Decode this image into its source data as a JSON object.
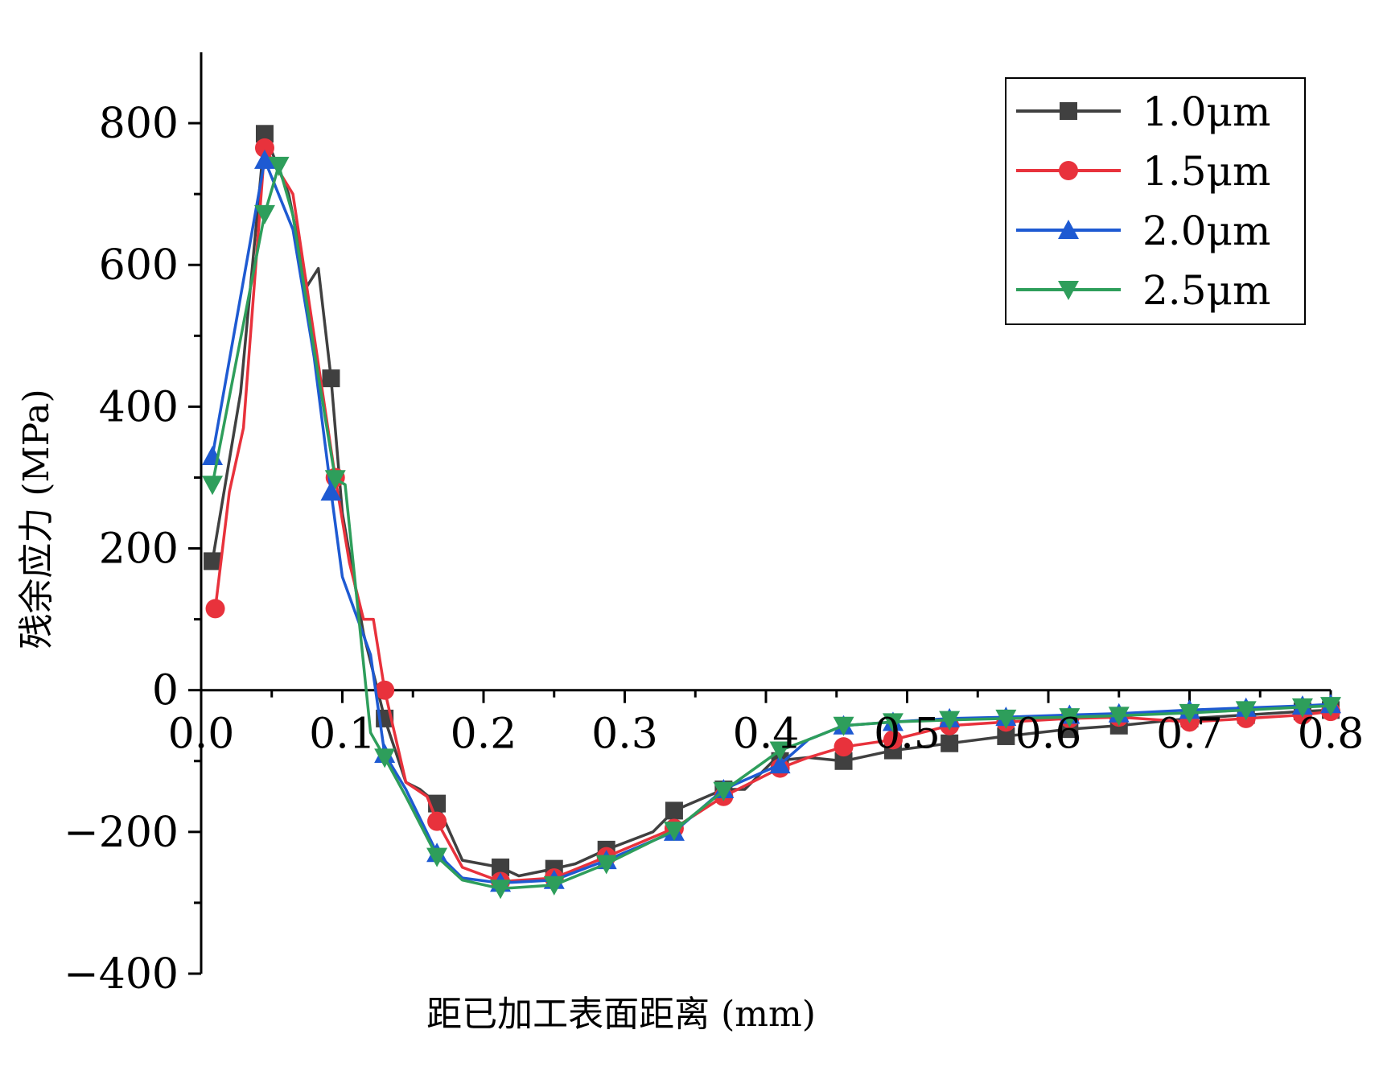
{
  "chart_data": {
    "type": "line",
    "title": "",
    "xlabel": "距已加工表面距离 (mm)",
    "ylabel": "残余应力 (MPa)",
    "xlim": [
      0.0,
      0.8
    ],
    "ylim": [
      -400,
      900
    ],
    "x_ticks": [
      "0.0",
      "0.1",
      "0.2",
      "0.3",
      "0.4",
      "0.5",
      "0.6",
      "0.7",
      "0.8"
    ],
    "y_ticks": [
      "800",
      "600",
      "400",
      "200",
      "0",
      "-200",
      "-400"
    ],
    "legend_position": "top-right",
    "series": [
      {
        "name": "1.0μm",
        "color": "#404040",
        "marker": "square",
        "points": [
          [
            0.008,
            182
          ],
          [
            0.028,
            420
          ],
          [
            0.045,
            785
          ],
          [
            0.062,
            700
          ],
          [
            0.075,
            570
          ],
          [
            0.083,
            595
          ],
          [
            0.092,
            440
          ],
          [
            0.1,
            250
          ],
          [
            0.115,
            80
          ],
          [
            0.13,
            -40
          ],
          [
            0.145,
            -130
          ],
          [
            0.155,
            -140
          ],
          [
            0.167,
            -160
          ],
          [
            0.185,
            -240
          ],
          [
            0.212,
            -250
          ],
          [
            0.225,
            -262
          ],
          [
            0.25,
            -252
          ],
          [
            0.265,
            -245
          ],
          [
            0.287,
            -225
          ],
          [
            0.32,
            -200
          ],
          [
            0.335,
            -170
          ],
          [
            0.37,
            -140
          ],
          [
            0.385,
            -140
          ],
          [
            0.405,
            -100
          ],
          [
            0.43,
            -95
          ],
          [
            0.455,
            -100
          ],
          [
            0.49,
            -85
          ],
          [
            0.53,
            -75
          ],
          [
            0.57,
            -65
          ],
          [
            0.615,
            -55
          ],
          [
            0.65,
            -50
          ],
          [
            0.7,
            -40
          ],
          [
            0.74,
            -35
          ],
          [
            0.78,
            -30
          ],
          [
            0.8,
            -28
          ]
        ],
        "marked": [
          [
            0.008,
            182
          ],
          [
            0.045,
            785
          ],
          [
            0.092,
            440
          ],
          [
            0.13,
            -40
          ],
          [
            0.167,
            -160
          ],
          [
            0.212,
            -250
          ],
          [
            0.25,
            -252
          ],
          [
            0.287,
            -225
          ],
          [
            0.335,
            -170
          ],
          [
            0.37,
            -140
          ],
          [
            0.41,
            -100
          ],
          [
            0.455,
            -100
          ],
          [
            0.49,
            -85
          ],
          [
            0.53,
            -75
          ],
          [
            0.57,
            -65
          ],
          [
            0.615,
            -55
          ],
          [
            0.65,
            -50
          ],
          [
            0.7,
            -40
          ],
          [
            0.74,
            -35
          ],
          [
            0.78,
            -30
          ],
          [
            0.8,
            -28
          ]
        ]
      },
      {
        "name": "1.5μm",
        "color": "#e8323c",
        "marker": "circle",
        "points": [
          [
            0.01,
            115
          ],
          [
            0.02,
            280
          ],
          [
            0.03,
            370
          ],
          [
            0.045,
            765
          ],
          [
            0.065,
            700
          ],
          [
            0.08,
            500
          ],
          [
            0.095,
            300
          ],
          [
            0.105,
            180
          ],
          [
            0.115,
            100
          ],
          [
            0.122,
            100
          ],
          [
            0.13,
            0
          ],
          [
            0.145,
            -130
          ],
          [
            0.16,
            -150
          ],
          [
            0.167,
            -185
          ],
          [
            0.185,
            -250
          ],
          [
            0.212,
            -270
          ],
          [
            0.25,
            -265
          ],
          [
            0.287,
            -235
          ],
          [
            0.335,
            -195
          ],
          [
            0.37,
            -150
          ],
          [
            0.41,
            -110
          ],
          [
            0.43,
            -95
          ],
          [
            0.455,
            -80
          ],
          [
            0.49,
            -70
          ],
          [
            0.53,
            -50
          ],
          [
            0.57,
            -45
          ],
          [
            0.615,
            -40
          ],
          [
            0.65,
            -38
          ],
          [
            0.7,
            -45
          ],
          [
            0.74,
            -40
          ],
          [
            0.78,
            -35
          ],
          [
            0.8,
            -30
          ]
        ],
        "marked": [
          [
            0.01,
            115
          ],
          [
            0.045,
            765
          ],
          [
            0.095,
            300
          ],
          [
            0.13,
            0
          ],
          [
            0.167,
            -185
          ],
          [
            0.212,
            -270
          ],
          [
            0.25,
            -265
          ],
          [
            0.287,
            -235
          ],
          [
            0.335,
            -195
          ],
          [
            0.37,
            -150
          ],
          [
            0.41,
            -110
          ],
          [
            0.455,
            -80
          ],
          [
            0.49,
            -70
          ],
          [
            0.53,
            -50
          ],
          [
            0.57,
            -45
          ],
          [
            0.615,
            -40
          ],
          [
            0.65,
            -38
          ],
          [
            0.7,
            -45
          ],
          [
            0.74,
            -40
          ],
          [
            0.78,
            -35
          ],
          [
            0.8,
            -30
          ]
        ]
      },
      {
        "name": "2.0μm",
        "color": "#1e5ad2",
        "marker": "triangle-up",
        "points": [
          [
            0.008,
            330
          ],
          [
            0.045,
            748
          ],
          [
            0.065,
            650
          ],
          [
            0.08,
            470
          ],
          [
            0.092,
            280
          ],
          [
            0.1,
            160
          ],
          [
            0.12,
            50
          ],
          [
            0.13,
            -90
          ],
          [
            0.145,
            -140
          ],
          [
            0.167,
            -230
          ],
          [
            0.185,
            -265
          ],
          [
            0.212,
            -272
          ],
          [
            0.25,
            -268
          ],
          [
            0.287,
            -240
          ],
          [
            0.335,
            -200
          ],
          [
            0.37,
            -140
          ],
          [
            0.41,
            -105
          ],
          [
            0.43,
            -70
          ],
          [
            0.455,
            -50
          ],
          [
            0.49,
            -45
          ],
          [
            0.53,
            -40
          ],
          [
            0.57,
            -38
          ],
          [
            0.615,
            -35
          ],
          [
            0.65,
            -33
          ],
          [
            0.7,
            -28
          ],
          [
            0.74,
            -25
          ],
          [
            0.78,
            -22
          ],
          [
            0.8,
            -20
          ]
        ],
        "marked": [
          [
            0.008,
            330
          ],
          [
            0.045,
            748
          ],
          [
            0.092,
            280
          ],
          [
            0.13,
            -90
          ],
          [
            0.167,
            -230
          ],
          [
            0.212,
            -272
          ],
          [
            0.25,
            -268
          ],
          [
            0.287,
            -240
          ],
          [
            0.335,
            -200
          ],
          [
            0.37,
            -140
          ],
          [
            0.41,
            -105
          ],
          [
            0.455,
            -50
          ],
          [
            0.49,
            -45
          ],
          [
            0.53,
            -40
          ],
          [
            0.57,
            -38
          ],
          [
            0.615,
            -35
          ],
          [
            0.65,
            -33
          ],
          [
            0.7,
            -28
          ],
          [
            0.74,
            -25
          ],
          [
            0.78,
            -22
          ],
          [
            0.8,
            -20
          ]
        ]
      },
      {
        "name": "2.5μm",
        "color": "#2e9e5b",
        "marker": "triangle-down",
        "points": [
          [
            0.008,
            290
          ],
          [
            0.045,
            672
          ],
          [
            0.055,
            740
          ],
          [
            0.065,
            670
          ],
          [
            0.08,
            480
          ],
          [
            0.095,
            298
          ],
          [
            0.102,
            290
          ],
          [
            0.12,
            -60
          ],
          [
            0.13,
            -95
          ],
          [
            0.145,
            -150
          ],
          [
            0.167,
            -235
          ],
          [
            0.185,
            -268
          ],
          [
            0.212,
            -280
          ],
          [
            0.25,
            -275
          ],
          [
            0.287,
            -245
          ],
          [
            0.335,
            -198
          ],
          [
            0.37,
            -142
          ],
          [
            0.41,
            -85
          ],
          [
            0.43,
            -70
          ],
          [
            0.455,
            -50
          ],
          [
            0.49,
            -45
          ],
          [
            0.53,
            -42
          ],
          [
            0.57,
            -40
          ],
          [
            0.615,
            -38
          ],
          [
            0.65,
            -36
          ],
          [
            0.7,
            -32
          ],
          [
            0.74,
            -28
          ],
          [
            0.78,
            -24
          ],
          [
            0.8,
            -22
          ]
        ],
        "marked": [
          [
            0.008,
            290
          ],
          [
            0.045,
            672
          ],
          [
            0.055,
            740
          ],
          [
            0.095,
            298
          ],
          [
            0.13,
            -95
          ],
          [
            0.167,
            -235
          ],
          [
            0.212,
            -280
          ],
          [
            0.25,
            -275
          ],
          [
            0.287,
            -245
          ],
          [
            0.335,
            -198
          ],
          [
            0.37,
            -142
          ],
          [
            0.41,
            -85
          ],
          [
            0.455,
            -50
          ],
          [
            0.49,
            -45
          ],
          [
            0.53,
            -42
          ],
          [
            0.57,
            -40
          ],
          [
            0.615,
            -38
          ],
          [
            0.65,
            -36
          ],
          [
            0.7,
            -32
          ],
          [
            0.74,
            -28
          ],
          [
            0.78,
            -24
          ],
          [
            0.8,
            -22
          ]
        ]
      }
    ]
  }
}
